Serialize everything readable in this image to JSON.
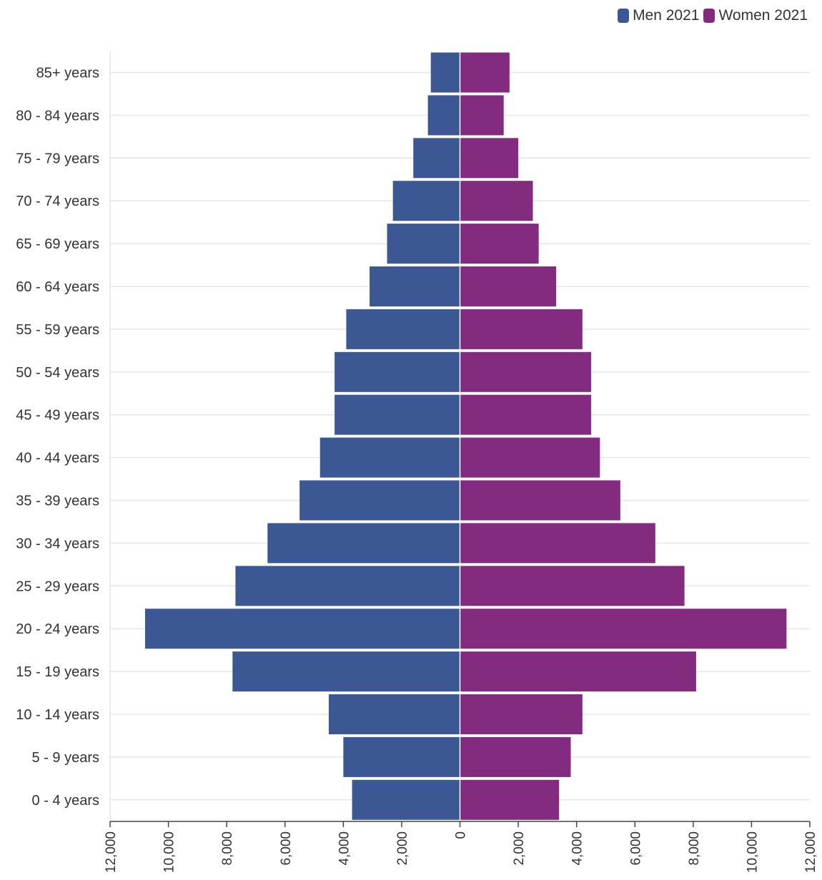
{
  "chart_data": {
    "type": "bar",
    "orientation": "horizontal-diverging",
    "title": "",
    "xlabel": "",
    "ylabel": "",
    "categories": [
      "85+ years",
      "80 - 84 years",
      "75 - 79 years",
      "70 - 74 years",
      "65 - 69 years",
      "60 - 64 years",
      "55 - 59 years",
      "50 - 54 years",
      "45 - 49 years",
      "40 - 44 years",
      "35 - 39 years",
      "30 - 34 years",
      "25 - 29 years",
      "20 - 24 years",
      "15 - 19 years",
      "10 - 14 years",
      "5 - 9 years",
      "0 - 4 years"
    ],
    "series": [
      {
        "name": "Men 2021",
        "color": "#3b5894",
        "values": [
          1000,
          1100,
          1600,
          2300,
          2500,
          3100,
          3900,
          4300,
          4300,
          4800,
          5500,
          6600,
          7700,
          10800,
          7800,
          4500,
          4000,
          3700
        ]
      },
      {
        "name": "Women 2021",
        "color": "#832b7e",
        "values": [
          1700,
          1500,
          2000,
          2500,
          2700,
          3300,
          4200,
          4500,
          4500,
          4800,
          5500,
          6700,
          7700,
          11200,
          8100,
          4200,
          3800,
          3400
        ]
      }
    ],
    "xlim": [
      -12000,
      12000
    ],
    "xticks": [
      "12,000",
      "10,000",
      "8,000",
      "6,000",
      "4,000",
      "2,000",
      "0",
      "2,000",
      "4,000",
      "6,000",
      "8,000",
      "10,000",
      "12,000"
    ],
    "grid": true,
    "legend_position": "top-right"
  }
}
